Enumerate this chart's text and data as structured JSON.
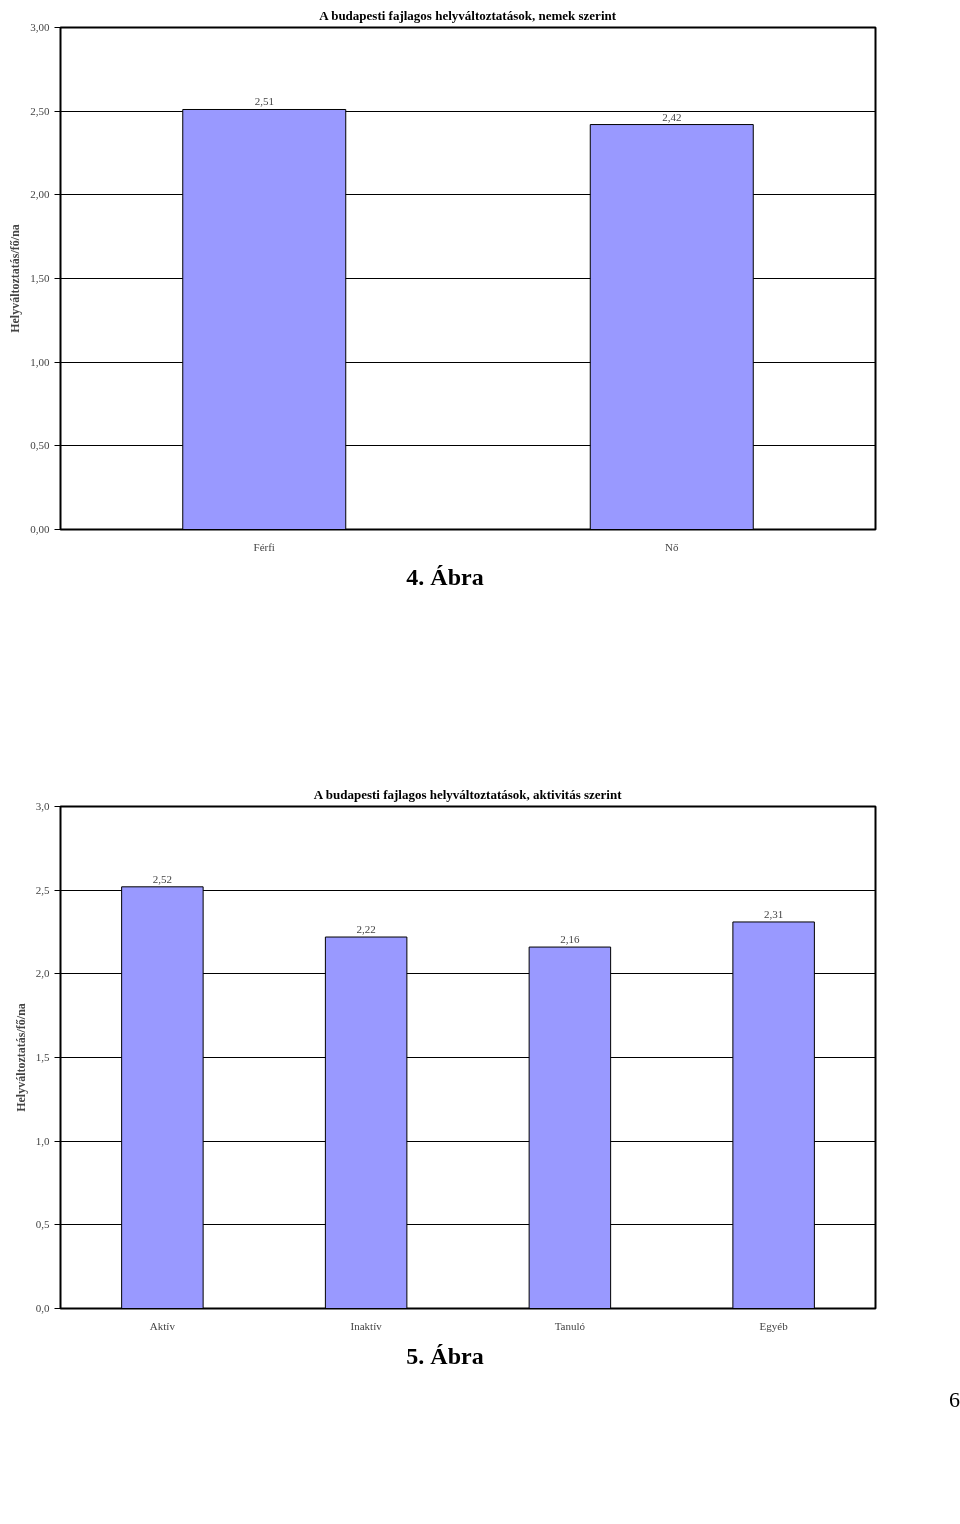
{
  "chart_data": [
    {
      "type": "bar",
      "title": "A budapesti fajlagos helyváltoztatások, nemek szerint",
      "ylabel": "Helyváltoztatás/fő/na",
      "categories": [
        "Férfi",
        "Nő"
      ],
      "values": [
        2.51,
        2.42
      ],
      "value_labels": [
        "2,51",
        "2,42"
      ],
      "color": "#9999ff",
      "ylim": [
        0,
        3
      ],
      "yticks": [
        {
          "value": 0,
          "label": "0,00"
        },
        {
          "value": 0.5,
          "label": "0,50"
        },
        {
          "value": 1,
          "label": "1,00"
        },
        {
          "value": 1.5,
          "label": "1,50"
        },
        {
          "value": 2,
          "label": "2,00"
        },
        {
          "value": 2.5,
          "label": "2,50"
        },
        {
          "value": 3,
          "label": "3,00"
        }
      ],
      "grid": "y",
      "annotations": [
        "4. Ábra"
      ]
    },
    {
      "type": "bar",
      "title": "A budapesti fajlagos helyváltoztatások, aktivitás szerint",
      "ylabel": "Helyváltoztatás/fő/na",
      "categories": [
        "Aktív",
        "Inaktív",
        "Tanuló",
        "Egyéb"
      ],
      "values": [
        2.52,
        2.22,
        2.16,
        2.31
      ],
      "value_labels": [
        "2,52",
        "2,22",
        "2,16",
        "2,31"
      ],
      "color": "#9999ff",
      "ylim": [
        0,
        3
      ],
      "yticks": [
        {
          "value": 0,
          "label": "0,0"
        },
        {
          "value": 0.5,
          "label": "0,5"
        },
        {
          "value": 1,
          "label": "1,0"
        },
        {
          "value": 1.5,
          "label": "1,5"
        },
        {
          "value": 2,
          "label": "2,0"
        },
        {
          "value": 2.5,
          "label": "2,5"
        },
        {
          "value": 3,
          "label": "3,0"
        }
      ],
      "grid": "y",
      "annotations": [
        "5. Ábra",
        "6"
      ]
    }
  ]
}
